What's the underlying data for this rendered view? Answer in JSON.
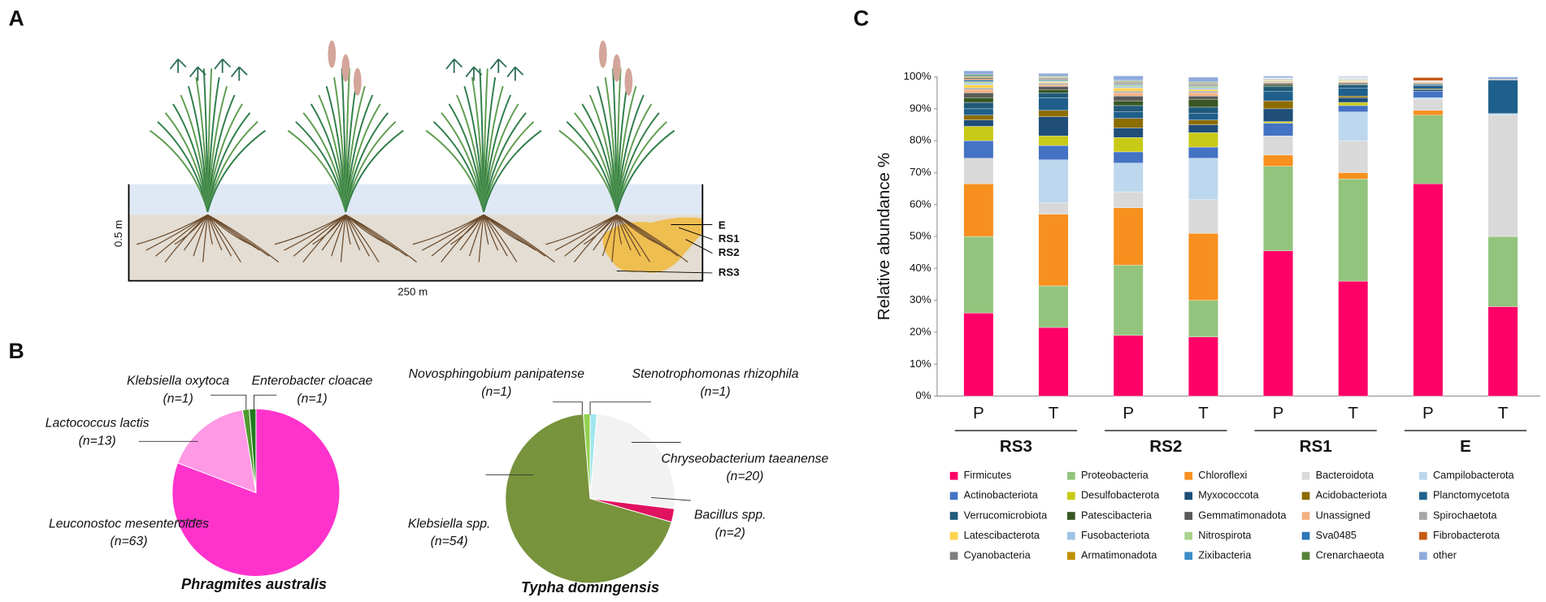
{
  "panel_labels": [
    "A",
    "B",
    "C"
  ],
  "diagram": {
    "depth_label": "0.5 m",
    "length_label": "250 m",
    "zones": [
      "E",
      "RS1",
      "RS2",
      "RS3"
    ]
  },
  "chart_data": [
    {
      "type": "pie",
      "title": "Phragmites australis",
      "categories": [
        "Leuconostoc mesenteroides",
        "Lactococcus lactis",
        "Klebsiella oxytoca",
        "Enterobacter cloacae"
      ],
      "values": [
        63,
        13,
        1,
        1
      ],
      "value_labels": [
        "(n=63)",
        "(n=13)",
        "(n=1)",
        "(n=1)"
      ],
      "colors": [
        "#ff33cc",
        "#ff99e6",
        "#4e9a2e",
        "#1f7a1f"
      ]
    },
    {
      "type": "pie",
      "title": "Typha domingensis",
      "categories": [
        "Klebsiella spp.",
        "Chryseobacterium taeanense",
        "Bacillus spp.",
        "Novosphingobium panipatense",
        "Stenotrophomonas rhizophila"
      ],
      "values": [
        54,
        20,
        2,
        1,
        1
      ],
      "value_labels": [
        "(n=54)",
        "(n=20)",
        "(n=2)",
        "(n=1)",
        "(n=1)"
      ],
      "order_clockwise_from_top": [
        4,
        1,
        2,
        0,
        3
      ],
      "colors": [
        "#77933c",
        "#f2f2f2",
        "#e0115f",
        "#92d050",
        "#9fe7ef"
      ]
    },
    {
      "type": "stacked-bar",
      "ylabel": "Relative abundance %",
      "categories": [
        "P",
        "T",
        "P",
        "T",
        "P",
        "T",
        "P",
        "T"
      ],
      "group_labels": [
        "RS3",
        "RS2",
        "RS1",
        "E"
      ],
      "ylim": [
        0,
        100
      ],
      "yticks": [
        {
          "value": 0,
          "label": "0%"
        },
        {
          "value": 10,
          "label": "10%"
        },
        {
          "value": 20,
          "label": "20%"
        },
        {
          "value": 30,
          "label": "30%"
        },
        {
          "value": 40,
          "label": "40%"
        },
        {
          "value": 50,
          "label": "50%"
        },
        {
          "value": 60,
          "label": "60%"
        },
        {
          "value": 70,
          "label": "70%"
        },
        {
          "value": 80,
          "label": "80%"
        },
        {
          "value": 90,
          "label": "90%"
        },
        {
          "value": 100,
          "label": "100%"
        }
      ],
      "series": [
        {
          "name": "Firmicutes",
          "color": "#ff0066",
          "values": [
            26,
            21.5,
            19,
            18.5,
            45.5,
            36,
            66.5,
            28
          ]
        },
        {
          "name": "Proteobacteria",
          "color": "#93c47d",
          "values": [
            24,
            13,
            22,
            11.5,
            26.5,
            32,
            21.5,
            22
          ]
        },
        {
          "name": "Chloroflexi",
          "color": "#f7901e",
          "values": [
            16.5,
            22.5,
            18,
            21,
            3.5,
            2,
            1.5,
            0
          ]
        },
        {
          "name": "Bacteroidota",
          "color": "#d9d9d9",
          "values": [
            8,
            3.5,
            5,
            10.5,
            6,
            10,
            3.5,
            38
          ]
        },
        {
          "name": "Campilobacterota",
          "color": "#bdd7ee",
          "values": [
            0,
            13.5,
            9,
            13,
            0,
            9,
            0.5,
            0.5
          ]
        },
        {
          "name": "Actinobacteriota",
          "color": "#4472c4",
          "values": [
            5.5,
            4.5,
            3.5,
            3.5,
            4,
            2,
            2,
            0
          ]
        },
        {
          "name": "Desulfobacterota",
          "color": "#c9c917",
          "values": [
            4.5,
            3,
            4.5,
            4.5,
            0.5,
            1,
            0,
            0
          ]
        },
        {
          "name": "Myxococcota",
          "color": "#1f4e79",
          "values": [
            2,
            6,
            3,
            2.5,
            4,
            1.5,
            0.5,
            0
          ]
        },
        {
          "name": "Acidobacteriota",
          "color": "#8c6d00",
          "values": [
            1.5,
            2,
            3,
            1.5,
            2.5,
            0.5,
            0.3,
            0
          ]
        },
        {
          "name": "Planctomycetota",
          "color": "#1f5f8b",
          "values": [
            2,
            4,
            2,
            2,
            3,
            2.5,
            1,
            10.5
          ]
        },
        {
          "name": "Verrucomicrobiota",
          "color": "#215a7a",
          "values": [
            2,
            1.5,
            2,
            2,
            1.5,
            1,
            0.3,
            0
          ]
        },
        {
          "name": "Patescibacteria",
          "color": "#385723",
          "values": [
            1.5,
            1,
            1.5,
            2.5,
            0.5,
            0.3,
            0.2,
            0
          ]
        },
        {
          "name": "Gemmatimonadota",
          "color": "#595959",
          "values": [
            1.5,
            1,
            1.5,
            1,
            0.5,
            0.3,
            0.2,
            0
          ]
        },
        {
          "name": "Unassigned",
          "color": "#f4b183",
          "values": [
            1,
            0.5,
            1,
            1,
            0.3,
            0.3,
            0.3,
            0
          ]
        },
        {
          "name": "Spirochaetota",
          "color": "#a6a6a6",
          "values": [
            0.5,
            0.5,
            0.5,
            0.5,
            0.3,
            0.2,
            0.2,
            0.3
          ]
        },
        {
          "name": "Latescibacterota",
          "color": "#ffd34d",
          "values": [
            1,
            0.3,
            1,
            0.5,
            0.2,
            0.2,
            0.1,
            0
          ]
        },
        {
          "name": "Fusobacteriota",
          "color": "#9dc3e6",
          "values": [
            0.5,
            0.3,
            0.5,
            0.5,
            0.2,
            0.2,
            0.1,
            0
          ]
        },
        {
          "name": "Nitrospirota",
          "color": "#a9d18e",
          "values": [
            0.5,
            0.3,
            0.5,
            0.5,
            0.2,
            0.2,
            0.1,
            0
          ]
        },
        {
          "name": "Sva0485",
          "color": "#2e75b6",
          "values": [
            0.5,
            0.3,
            0.3,
            0.3,
            0,
            0.1,
            0,
            0
          ]
        },
        {
          "name": "Fibrobacterota",
          "color": "#c55a11",
          "values": [
            0.3,
            0.2,
            0.2,
            0.2,
            0,
            0,
            1,
            0
          ]
        },
        {
          "name": "Cyanobacteria",
          "color": "#7f7f7f",
          "values": [
            0.5,
            0.3,
            0.3,
            0.3,
            0.2,
            0.2,
            0.1,
            0
          ]
        },
        {
          "name": "Armatimonadota",
          "color": "#bf9000",
          "values": [
            0.3,
            0.2,
            0.2,
            0.2,
            0.1,
            0.1,
            0,
            0
          ]
        },
        {
          "name": "Zixibacteria",
          "color": "#3c8dc9",
          "values": [
            0.3,
            0.2,
            0.2,
            0.2,
            0.1,
            0.1,
            0,
            0
          ]
        },
        {
          "name": "Crenarchaeota",
          "color": "#548235",
          "values": [
            0.3,
            0.2,
            0.2,
            0.2,
            0.1,
            0.1,
            0,
            0
          ]
        },
        {
          "name": "other",
          "color": "#8faadc",
          "values": [
            1.2,
            0.8,
            1.4,
            1.5,
            0.5,
            0.3,
            0,
            0.7
          ]
        }
      ]
    }
  ]
}
